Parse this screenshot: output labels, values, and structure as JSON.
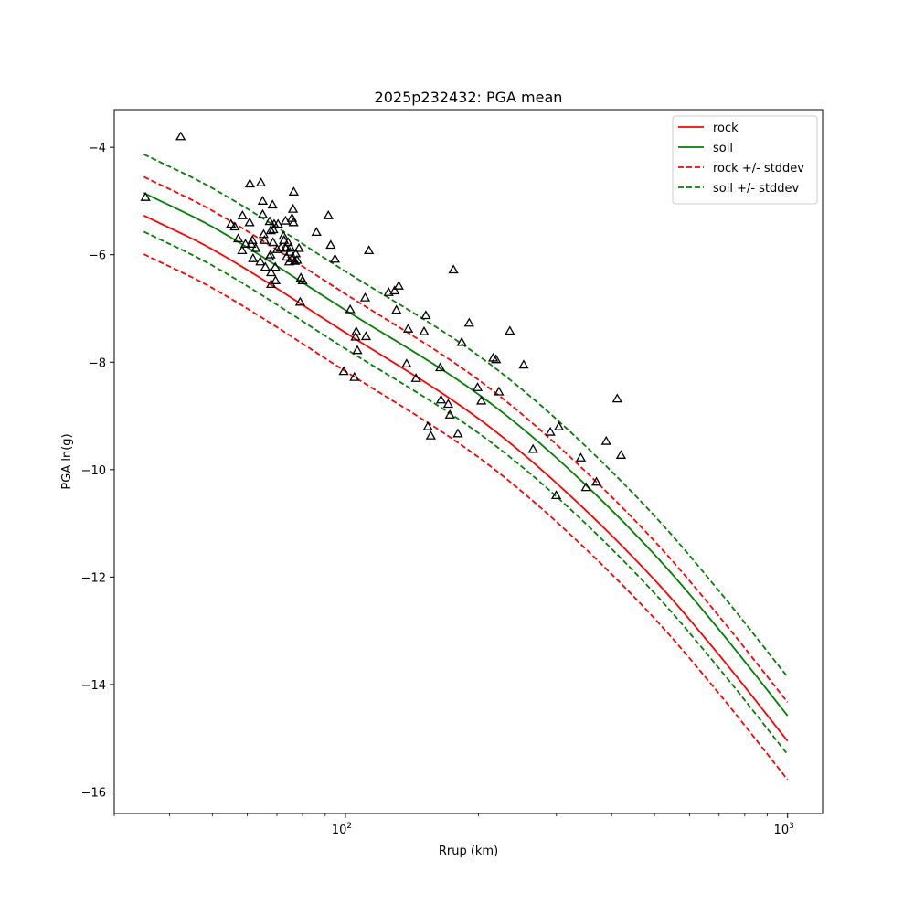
{
  "chart_data": {
    "type": "line",
    "title": "2025p232432: PGA mean",
    "xlabel": "Rrup (km)",
    "ylabel": "PGA ln(g)",
    "xscale": "log",
    "xlim": [
      30,
      1200
    ],
    "ylim": [
      -16.4,
      -3.3
    ],
    "xticks": [
      {
        "value": 100,
        "label": "10^2"
      },
      {
        "value": 1000,
        "label": "10^3"
      }
    ],
    "yticks": [
      -16,
      -14,
      -12,
      -10,
      -8,
      -6,
      -4
    ],
    "grid": false,
    "legend_position": "top-right",
    "series": [
      {
        "name": "rock",
        "color": "#ff0000",
        "dash": false,
        "x": [
          35,
          50,
          100,
          200,
          300,
          500,
          700,
          1000
        ],
        "y": [
          -5.27,
          -5.9,
          -7.45,
          -9.05,
          -10.25,
          -12.05,
          -13.45,
          -15.05
        ]
      },
      {
        "name": "soil",
        "color": "#008000",
        "dash": false,
        "x": [
          35,
          50,
          100,
          200,
          300,
          500,
          700,
          1000
        ],
        "y": [
          -4.85,
          -5.48,
          -7.03,
          -8.6,
          -9.78,
          -11.58,
          -12.98,
          -14.58
        ]
      },
      {
        "name": "rock +/- stddev",
        "color": "#ff0000",
        "dash": true,
        "x": [
          35,
          50,
          100,
          200,
          300,
          500,
          700,
          1000
        ],
        "y": [
          -4.55,
          -5.18,
          -6.73,
          -8.33,
          -9.53,
          -11.33,
          -12.73,
          -14.33
        ]
      },
      {
        "name": "",
        "color": "#ff0000",
        "dash": true,
        "legend": false,
        "x": [
          35,
          50,
          100,
          200,
          300,
          500,
          700,
          1000
        ],
        "y": [
          -5.99,
          -6.62,
          -8.17,
          -9.77,
          -10.97,
          -12.77,
          -14.17,
          -15.77
        ]
      },
      {
        "name": "soil +/- stddev",
        "color": "#008000",
        "dash": true,
        "x": [
          35,
          50,
          100,
          200,
          300,
          500,
          700,
          1000
        ],
        "y": [
          -4.13,
          -4.76,
          -6.31,
          -7.88,
          -9.06,
          -10.86,
          -12.26,
          -13.86
        ]
      },
      {
        "name": "",
        "color": "#008000",
        "dash": true,
        "legend": false,
        "x": [
          35,
          50,
          100,
          200,
          300,
          500,
          700,
          1000
        ],
        "y": [
          -5.57,
          -6.2,
          -7.75,
          -9.32,
          -10.5,
          -12.3,
          -13.7,
          -15.3
        ]
      }
    ],
    "observations": {
      "marker": "triangle",
      "color": "#000000",
      "points": [
        [
          35.3,
          -4.93
        ],
        [
          42.4,
          -3.8
        ],
        [
          55.1,
          -5.43
        ],
        [
          56.2,
          -5.48
        ],
        [
          57.2,
          -5.7
        ],
        [
          58.5,
          -5.27
        ],
        [
          58.4,
          -5.92
        ],
        [
          59.4,
          -5.8
        ],
        [
          60.8,
          -4.68
        ],
        [
          60.7,
          -5.4
        ],
        [
          61.2,
          -5.8
        ],
        [
          61.6,
          -5.73
        ],
        [
          61.8,
          -6.07
        ],
        [
          62.7,
          -5.88
        ],
        [
          64.2,
          -6.13
        ],
        [
          64.4,
          -4.66
        ],
        [
          65.0,
          -5.0
        ],
        [
          65.0,
          -5.25
        ],
        [
          65.3,
          -5.62
        ],
        [
          65.6,
          -5.73
        ],
        [
          65.9,
          -6.23
        ],
        [
          67.3,
          -6.04
        ],
        [
          67.4,
          -5.38
        ],
        [
          67.7,
          -6.0
        ],
        [
          67.8,
          -5.55
        ],
        [
          67.9,
          -6.33
        ],
        [
          67.9,
          -6.55
        ],
        [
          68.4,
          -5.07
        ],
        [
          68.6,
          -5.77
        ],
        [
          68.7,
          -5.53
        ],
        [
          69.0,
          -5.43
        ],
        [
          69.4,
          -6.23
        ],
        [
          69.5,
          -6.48
        ],
        [
          70.1,
          -5.9
        ],
        [
          70.4,
          -5.43
        ],
        [
          71.4,
          -5.87
        ],
        [
          72.4,
          -5.65
        ],
        [
          72.6,
          -5.73
        ],
        [
          73.2,
          -5.37
        ],
        [
          73.3,
          -5.88
        ],
        [
          73.6,
          -6.04
        ],
        [
          74.2,
          -5.77
        ],
        [
          74.6,
          -6.13
        ],
        [
          74.9,
          -5.95
        ],
        [
          75.1,
          -5.87
        ],
        [
          75.7,
          -5.32
        ],
        [
          75.7,
          -6.07
        ],
        [
          76.1,
          -5.15
        ],
        [
          76.3,
          -5.4
        ],
        [
          76.4,
          -4.83
        ],
        [
          76.8,
          -6.12
        ],
        [
          77.2,
          -5.98
        ],
        [
          77.7,
          -6.1
        ],
        [
          78.5,
          -5.88
        ],
        [
          79.0,
          -6.88
        ],
        [
          79.3,
          -6.43
        ],
        [
          80.0,
          -6.48
        ],
        [
          86.0,
          -5.58
        ],
        [
          91.5,
          -5.27
        ],
        [
          92.6,
          -5.82
        ],
        [
          94.7,
          -6.08
        ],
        [
          99.1,
          -8.17
        ],
        [
          102.5,
          -7.02
        ],
        [
          104.8,
          -8.28
        ],
        [
          105.4,
          -7.53
        ],
        [
          105.8,
          -7.43
        ],
        [
          106.4,
          -7.78
        ],
        [
          110.8,
          -6.8
        ],
        [
          111.3,
          -7.52
        ],
        [
          113.0,
          -5.92
        ],
        [
          125.2,
          -6.7
        ],
        [
          129.2,
          -6.67
        ],
        [
          130.4,
          -7.03
        ],
        [
          132.0,
          -6.58
        ],
        [
          137.5,
          -8.03
        ],
        [
          138.6,
          -7.38
        ],
        [
          144.4,
          -8.3
        ],
        [
          150.6,
          -7.43
        ],
        [
          152.0,
          -7.13
        ],
        [
          153.6,
          -9.2
        ],
        [
          156.0,
          -9.37
        ],
        [
          163.8,
          -8.1
        ],
        [
          164.5,
          -8.7
        ],
        [
          170.8,
          -8.78
        ],
        [
          172.3,
          -8.98
        ],
        [
          175.5,
          -6.28
        ],
        [
          179.6,
          -9.33
        ],
        [
          183.2,
          -7.63
        ],
        [
          190.5,
          -7.27
        ],
        [
          199.0,
          -8.47
        ],
        [
          202.9,
          -8.72
        ],
        [
          215.9,
          -7.92
        ],
        [
          219.1,
          -7.95
        ],
        [
          222.4,
          -8.55
        ],
        [
          235.4,
          -7.42
        ],
        [
          253.0,
          -8.05
        ],
        [
          265.6,
          -9.62
        ],
        [
          290.7,
          -9.3
        ],
        [
          299.7,
          -10.48
        ],
        [
          304.0,
          -9.2
        ],
        [
          340.7,
          -9.78
        ],
        [
          350.0,
          -10.33
        ],
        [
          369.5,
          -10.23
        ],
        [
          388.8,
          -9.47
        ],
        [
          411.8,
          -8.68
        ],
        [
          420.0,
          -9.73
        ]
      ]
    }
  }
}
